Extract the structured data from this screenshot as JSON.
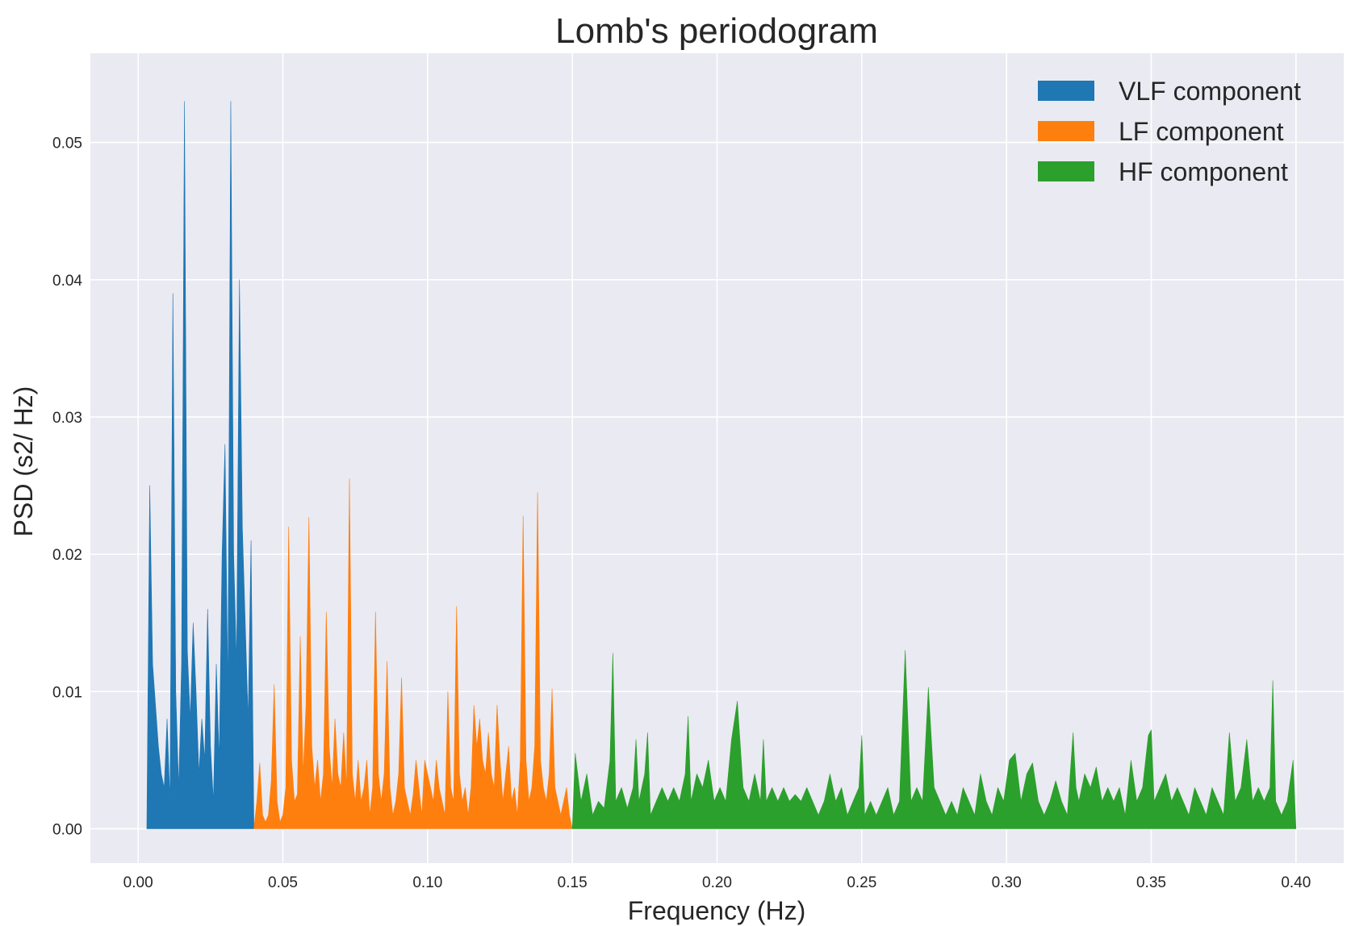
{
  "chart_data": {
    "type": "area",
    "title": "Lomb's periodogram",
    "xlabel": "Frequency (Hz)",
    "ylabel": "PSD (s2/ Hz)",
    "xlim": [
      -0.0165,
      0.4165
    ],
    "ylim": [
      -0.0025,
      0.0565
    ],
    "xticks": [
      0.0,
      0.05,
      0.1,
      0.15,
      0.2,
      0.25,
      0.3,
      0.35,
      0.4
    ],
    "xtick_labels": [
      "0.00",
      "0.05",
      "0.10",
      "0.15",
      "0.20",
      "0.25",
      "0.30",
      "0.35",
      "0.40"
    ],
    "yticks": [
      0.0,
      0.01,
      0.02,
      0.03,
      0.04,
      0.05
    ],
    "ytick_labels": [
      "0.00",
      "0.01",
      "0.02",
      "0.03",
      "0.04",
      "0.05"
    ],
    "grid": true,
    "legend_position": "top-right",
    "series": [
      {
        "name": "VLF component",
        "color": "#1f77b4",
        "x": [
          0.003,
          0.004,
          0.005,
          0.006,
          0.007,
          0.008,
          0.009,
          0.01,
          0.011,
          0.012,
          0.013,
          0.014,
          0.015,
          0.016,
          0.017,
          0.018,
          0.019,
          0.02,
          0.021,
          0.022,
          0.023,
          0.024,
          0.025,
          0.026,
          0.027,
          0.028,
          0.029,
          0.03,
          0.031,
          0.032,
          0.033,
          0.034,
          0.035,
          0.036,
          0.037,
          0.038,
          0.039,
          0.04
        ],
        "y": [
          0.0,
          0.025,
          0.012,
          0.009,
          0.006,
          0.004,
          0.003,
          0.008,
          0.002,
          0.039,
          0.01,
          0.003,
          0.012,
          0.053,
          0.013,
          0.008,
          0.015,
          0.01,
          0.004,
          0.008,
          0.005,
          0.016,
          0.006,
          0.002,
          0.012,
          0.005,
          0.02,
          0.028,
          0.01,
          0.053,
          0.02,
          0.012,
          0.04,
          0.022,
          0.015,
          0.008,
          0.021,
          0.0
        ]
      },
      {
        "name": "LF component",
        "color": "#ff7f0e",
        "x": [
          0.04,
          0.041,
          0.042,
          0.043,
          0.044,
          0.045,
          0.046,
          0.047,
          0.048,
          0.049,
          0.05,
          0.051,
          0.052,
          0.053,
          0.054,
          0.055,
          0.056,
          0.057,
          0.058,
          0.059,
          0.06,
          0.061,
          0.062,
          0.063,
          0.064,
          0.065,
          0.066,
          0.067,
          0.068,
          0.069,
          0.07,
          0.071,
          0.072,
          0.073,
          0.074,
          0.075,
          0.076,
          0.077,
          0.078,
          0.079,
          0.08,
          0.081,
          0.082,
          0.083,
          0.084,
          0.085,
          0.086,
          0.087,
          0.088,
          0.089,
          0.09,
          0.091,
          0.092,
          0.093,
          0.094,
          0.095,
          0.096,
          0.097,
          0.098,
          0.099,
          0.1,
          0.101,
          0.102,
          0.103,
          0.104,
          0.105,
          0.106,
          0.107,
          0.108,
          0.109,
          0.11,
          0.111,
          0.112,
          0.113,
          0.114,
          0.115,
          0.116,
          0.117,
          0.118,
          0.119,
          0.12,
          0.121,
          0.122,
          0.123,
          0.124,
          0.125,
          0.126,
          0.127,
          0.128,
          0.129,
          0.13,
          0.131,
          0.132,
          0.133,
          0.134,
          0.135,
          0.136,
          0.137,
          0.138,
          0.139,
          0.14,
          0.141,
          0.142,
          0.143,
          0.144,
          0.145,
          0.146,
          0.147,
          0.148,
          0.149,
          0.15
        ],
        "y": [
          0.0,
          0.002,
          0.0048,
          0.001,
          0.0005,
          0.001,
          0.0035,
          0.0105,
          0.002,
          0.0005,
          0.001,
          0.003,
          0.022,
          0.005,
          0.002,
          0.0025,
          0.014,
          0.004,
          0.009,
          0.0227,
          0.006,
          0.003,
          0.005,
          0.002,
          0.004,
          0.0158,
          0.006,
          0.003,
          0.008,
          0.004,
          0.003,
          0.007,
          0.003,
          0.0255,
          0.004,
          0.002,
          0.005,
          0.002,
          0.003,
          0.005,
          0.001,
          0.003,
          0.0158,
          0.004,
          0.002,
          0.004,
          0.0122,
          0.003,
          0.001,
          0.002,
          0.004,
          0.011,
          0.003,
          0.002,
          0.001,
          0.0025,
          0.005,
          0.003,
          0.001,
          0.005,
          0.004,
          0.003,
          0.002,
          0.005,
          0.003,
          0.002,
          0.001,
          0.01,
          0.003,
          0.002,
          0.0162,
          0.004,
          0.002,
          0.003,
          0.001,
          0.003,
          0.009,
          0.006,
          0.008,
          0.005,
          0.004,
          0.007,
          0.004,
          0.003,
          0.009,
          0.005,
          0.002,
          0.004,
          0.006,
          0.002,
          0.003,
          0.001,
          0.005,
          0.0228,
          0.005,
          0.002,
          0.003,
          0.006,
          0.0245,
          0.005,
          0.003,
          0.002,
          0.004,
          0.0102,
          0.003,
          0.002,
          0.001,
          0.002,
          0.003,
          0.001,
          0.0
        ]
      },
      {
        "name": "HF component",
        "color": "#2ca02c",
        "x": [
          0.15,
          0.151,
          0.153,
          0.155,
          0.157,
          0.159,
          0.161,
          0.163,
          0.164,
          0.165,
          0.167,
          0.169,
          0.171,
          0.172,
          0.173,
          0.175,
          0.176,
          0.177,
          0.179,
          0.181,
          0.183,
          0.185,
          0.187,
          0.189,
          0.19,
          0.191,
          0.193,
          0.195,
          0.197,
          0.199,
          0.201,
          0.203,
          0.205,
          0.207,
          0.209,
          0.211,
          0.213,
          0.215,
          0.216,
          0.217,
          0.219,
          0.221,
          0.223,
          0.225,
          0.227,
          0.229,
          0.231,
          0.233,
          0.235,
          0.237,
          0.239,
          0.241,
          0.243,
          0.245,
          0.247,
          0.249,
          0.25,
          0.251,
          0.253,
          0.255,
          0.257,
          0.259,
          0.261,
          0.263,
          0.265,
          0.267,
          0.269,
          0.271,
          0.273,
          0.275,
          0.277,
          0.279,
          0.281,
          0.283,
          0.285,
          0.287,
          0.289,
          0.291,
          0.293,
          0.295,
          0.297,
          0.299,
          0.301,
          0.303,
          0.305,
          0.307,
          0.309,
          0.311,
          0.313,
          0.315,
          0.317,
          0.319,
          0.321,
          0.323,
          0.324,
          0.325,
          0.327,
          0.329,
          0.331,
          0.333,
          0.335,
          0.337,
          0.339,
          0.341,
          0.343,
          0.345,
          0.347,
          0.349,
          0.35,
          0.351,
          0.353,
          0.355,
          0.357,
          0.359,
          0.361,
          0.363,
          0.365,
          0.367,
          0.369,
          0.371,
          0.373,
          0.375,
          0.377,
          0.379,
          0.381,
          0.383,
          0.385,
          0.387,
          0.389,
          0.391,
          0.392,
          0.393,
          0.395,
          0.397,
          0.399,
          0.4
        ],
        "y": [
          0.0,
          0.0055,
          0.002,
          0.004,
          0.001,
          0.002,
          0.0015,
          0.005,
          0.0128,
          0.002,
          0.003,
          0.0015,
          0.003,
          0.0065,
          0.002,
          0.004,
          0.007,
          0.001,
          0.002,
          0.003,
          0.002,
          0.003,
          0.002,
          0.004,
          0.0082,
          0.002,
          0.004,
          0.003,
          0.005,
          0.002,
          0.003,
          0.002,
          0.0065,
          0.0093,
          0.003,
          0.002,
          0.004,
          0.002,
          0.0065,
          0.002,
          0.003,
          0.002,
          0.003,
          0.002,
          0.0025,
          0.002,
          0.003,
          0.002,
          0.001,
          0.002,
          0.004,
          0.002,
          0.003,
          0.001,
          0.002,
          0.003,
          0.0068,
          0.001,
          0.002,
          0.001,
          0.002,
          0.003,
          0.001,
          0.002,
          0.013,
          0.002,
          0.003,
          0.002,
          0.0103,
          0.003,
          0.002,
          0.001,
          0.002,
          0.001,
          0.003,
          0.002,
          0.001,
          0.004,
          0.002,
          0.001,
          0.003,
          0.002,
          0.005,
          0.0055,
          0.002,
          0.004,
          0.0048,
          0.002,
          0.001,
          0.002,
          0.0035,
          0.002,
          0.001,
          0.007,
          0.003,
          0.002,
          0.004,
          0.003,
          0.0045,
          0.002,
          0.003,
          0.002,
          0.003,
          0.001,
          0.005,
          0.002,
          0.003,
          0.0068,
          0.0072,
          0.002,
          0.003,
          0.004,
          0.002,
          0.003,
          0.002,
          0.001,
          0.003,
          0.002,
          0.001,
          0.003,
          0.002,
          0.001,
          0.007,
          0.002,
          0.003,
          0.0065,
          0.002,
          0.003,
          0.002,
          0.003,
          0.0108,
          0.002,
          0.001,
          0.002,
          0.005,
          0.0
        ]
      }
    ]
  }
}
